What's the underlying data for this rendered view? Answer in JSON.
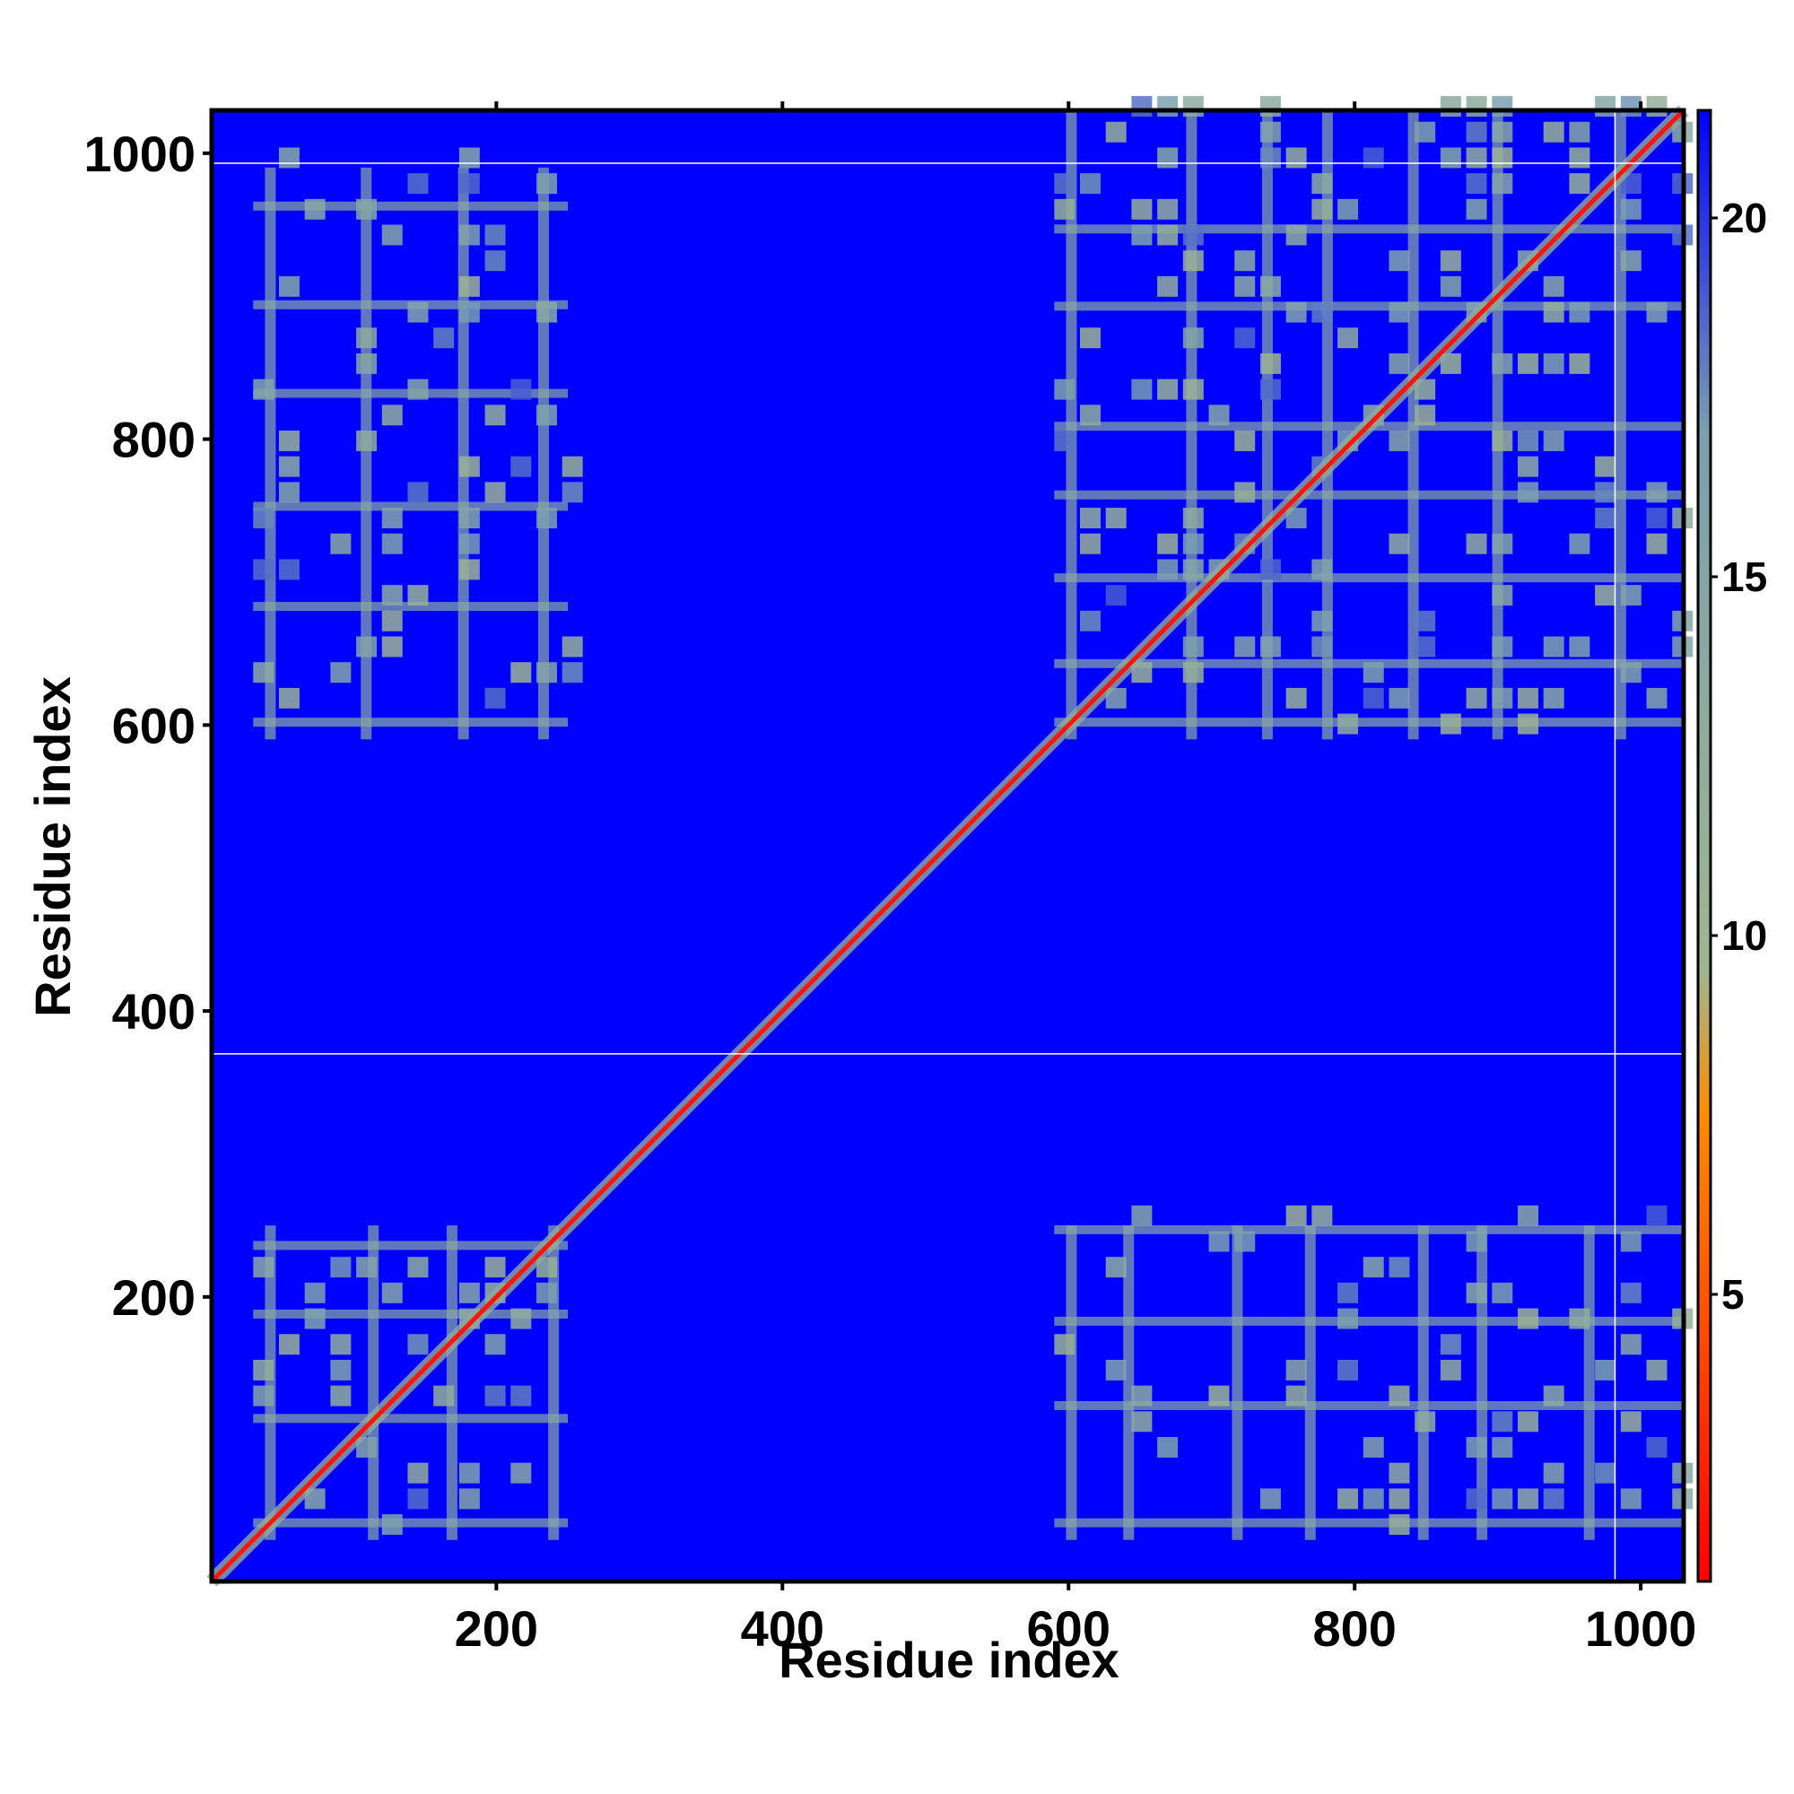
{
  "chart_data": {
    "type": "heatmap",
    "title": "",
    "xlabel": "Residue index",
    "ylabel": "Residue index",
    "xlim": [
      1,
      1030
    ],
    "ylim": [
      1,
      1030
    ],
    "x_ticks": [
      "200",
      "400",
      "600",
      "800",
      "1000"
    ],
    "y_ticks": [
      "200",
      "400",
      "600",
      "800",
      "1000"
    ],
    "colorbar": {
      "range": [
        1,
        21.5
      ],
      "ticks": [
        "5",
        "10",
        "15",
        "20"
      ],
      "colors": [
        "#ff0000",
        "#ff8c00",
        "#9fb68f",
        "#7aa0b0",
        "#0000ff"
      ],
      "background_value": 21.5
    },
    "diagonal": {
      "start": 1,
      "end": 1030,
      "value": 2
    },
    "domain_blocks": [
      {
        "x": [
          30,
          250
        ],
        "y": [
          30,
          250
        ],
        "density": 0.55
      },
      {
        "x": [
          590,
          1030
        ],
        "y": [
          590,
          1030
        ],
        "density": 0.55
      },
      {
        "x": [
          30,
          250
        ],
        "y": [
          590,
          990
        ],
        "density": 0.35
      },
      {
        "x": [
          590,
          1030
        ],
        "y": [
          30,
          250
        ],
        "density": 0.35
      }
    ],
    "guide_lines": {
      "horizontal_y": [
        370,
        993
      ],
      "vertical_x": [
        982
      ]
    },
    "grid": false,
    "legend": "colorbar-right"
  }
}
